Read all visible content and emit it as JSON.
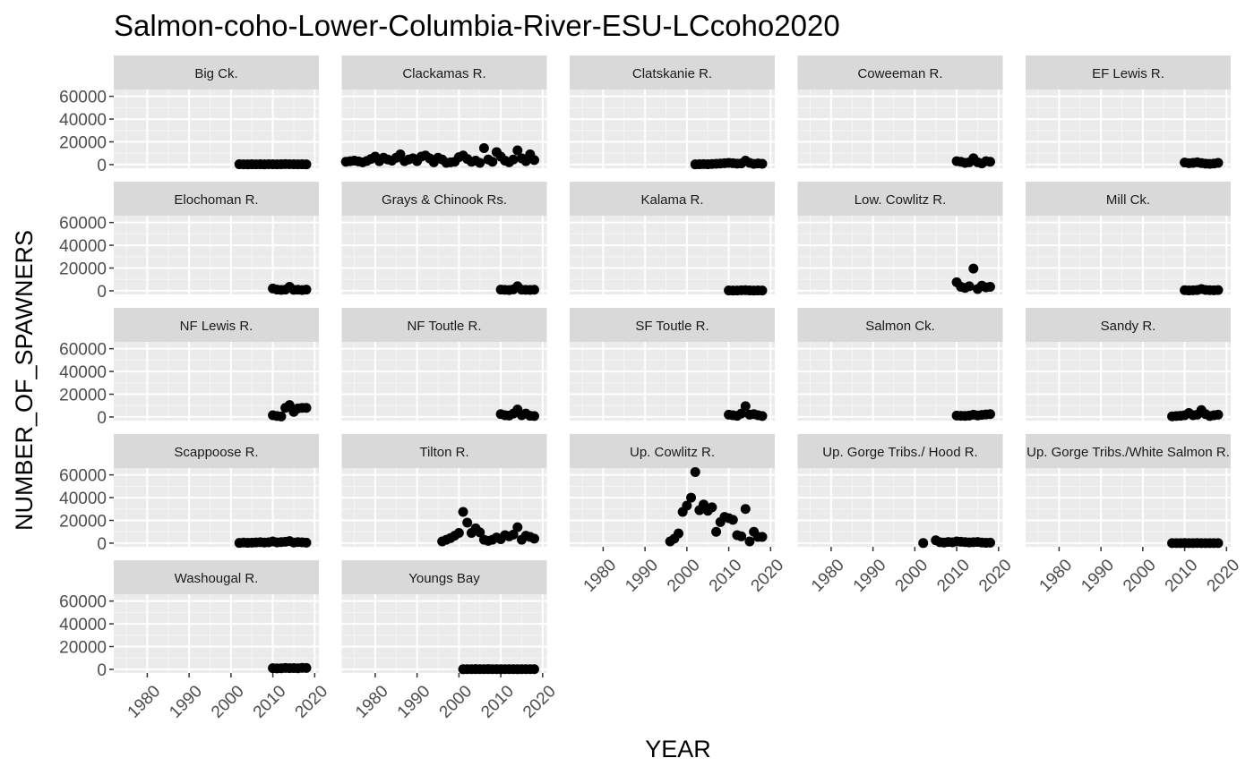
{
  "chart_data": {
    "type": "scatter",
    "title": "Salmon-coho-Lower-Columbia-River-ESU-LCcoho2020",
    "xlabel": "YEAR",
    "ylabel": "NUMBER_OF_SPAWNERS",
    "xlim": [
      1972,
      2021
    ],
    "ylim": [
      -3200,
      66000
    ],
    "x_ticks": [
      1980,
      1990,
      2000,
      2010,
      2020
    ],
    "y_ticks": [
      0,
      20000,
      40000,
      60000
    ],
    "x_tick_labels": [
      "1980",
      "1990",
      "2000",
      "2010",
      "2020"
    ],
    "y_tick_labels": [
      "0",
      "20000",
      "40000",
      "60000"
    ],
    "grid": true,
    "legend": "none",
    "point_color": "#000000",
    "panel_background": "#ebebeb",
    "strip_background": "#d9d9d9",
    "facets": [
      {
        "name": "Big Ck.",
        "x": [
          2002,
          2003,
          2004,
          2005,
          2006,
          2007,
          2008,
          2009,
          2010,
          2011,
          2012,
          2013,
          2014,
          2015,
          2016,
          2017,
          2018
        ],
        "y": [
          300,
          250,
          200,
          300,
          250,
          300,
          200,
          350,
          300,
          250,
          300,
          400,
          350,
          300,
          250,
          300,
          200
        ]
      },
      {
        "name": "Clackamas R.",
        "x": [
          1973,
          1974,
          1975,
          1976,
          1977,
          1978,
          1979,
          1980,
          1981,
          1982,
          1983,
          1984,
          1985,
          1986,
          1987,
          1988,
          1989,
          1990,
          1991,
          1992,
          1993,
          1994,
          1995,
          1996,
          1997,
          1998,
          1999,
          2000,
          2001,
          2002,
          2003,
          2004,
          2005,
          2006,
          2007,
          2008,
          2009,
          2010,
          2011,
          2012,
          2013,
          2014,
          2015,
          2016,
          2017,
          2018
        ],
        "y": [
          2500,
          3000,
          3500,
          2800,
          2000,
          3200,
          5000,
          7000,
          3000,
          6000,
          4500,
          3500,
          6000,
          9000,
          3000,
          4500,
          5500,
          3000,
          7000,
          8000,
          5500,
          2000,
          6000,
          4500,
          1500,
          2000,
          2500,
          6500,
          8000,
          5000,
          2500,
          3500,
          1500,
          14500,
          4500,
          2500,
          11000,
          7000,
          3500,
          2000,
          4500,
          12500,
          5500,
          3000,
          9000,
          4000
        ]
      },
      {
        "name": "Clatskanie R.",
        "x": [
          2002,
          2003,
          2004,
          2005,
          2006,
          2007,
          2008,
          2009,
          2010,
          2011,
          2012,
          2013,
          2014,
          2015,
          2016,
          2017,
          2018
        ],
        "y": [
          200,
          300,
          400,
          300,
          500,
          700,
          900,
          1200,
          1500,
          1200,
          800,
          1000,
          3500,
          1500,
          600,
          1000,
          700
        ]
      },
      {
        "name": "Coweeman R.",
        "x": [
          2010,
          2011,
          2012,
          2013,
          2014,
          2015,
          2016,
          2017,
          2018
        ],
        "y": [
          3000,
          2500,
          1500,
          2000,
          5500,
          2000,
          1000,
          3000,
          2500
        ]
      },
      {
        "name": "EF Lewis R.",
        "x": [
          2010,
          2011,
          2012,
          2013,
          2014,
          2015,
          2016,
          2017,
          2018
        ],
        "y": [
          1800,
          1200,
          1500,
          2000,
          1300,
          800,
          600,
          900,
          1500
        ]
      },
      {
        "name": "Elochoman R.",
        "x": [
          2010,
          2011,
          2012,
          2013,
          2014,
          2015,
          2016,
          2017,
          2018
        ],
        "y": [
          2000,
          1000,
          700,
          1000,
          3500,
          800,
          900,
          600,
          1000
        ]
      },
      {
        "name": "Grays & Chinook Rs.",
        "x": [
          2010,
          2011,
          2012,
          2013,
          2014,
          2015,
          2016,
          2017,
          2018
        ],
        "y": [
          1000,
          800,
          600,
          1200,
          4000,
          900,
          800,
          700,
          900
        ]
      },
      {
        "name": "Kalama R.",
        "x": [
          2010,
          2011,
          2012,
          2013,
          2014,
          2015,
          2016,
          2017,
          2018
        ],
        "y": [
          300,
          200,
          250,
          400,
          500,
          300,
          200,
          300,
          250
        ]
      },
      {
        "name": "Low. Cowlitz R.",
        "x": [
          2010,
          2011,
          2012,
          2013,
          2014,
          2015,
          2016,
          2017,
          2018
        ],
        "y": [
          7500,
          3500,
          2500,
          4000,
          19500,
          1500,
          4500,
          3000,
          3500
        ]
      },
      {
        "name": "Mill Ck.",
        "x": [
          2010,
          2011,
          2012,
          2013,
          2014,
          2015,
          2016,
          2017,
          2018
        ],
        "y": [
          500,
          300,
          400,
          600,
          1500,
          700,
          500,
          400,
          600
        ]
      },
      {
        "name": "NF Lewis R.",
        "x": [
          2010,
          2011,
          2012,
          2013,
          2014,
          2015,
          2016,
          2017,
          2018
        ],
        "y": [
          1500,
          800,
          400,
          8000,
          10500,
          4500,
          7500,
          8000,
          8000
        ]
      },
      {
        "name": "NF Toutle R.",
        "x": [
          2010,
          2011,
          2012,
          2013,
          2014,
          2015,
          2016,
          2017,
          2018
        ],
        "y": [
          2500,
          1500,
          1200,
          3000,
          6500,
          1500,
          3000,
          1000,
          800
        ]
      },
      {
        "name": "SF Toutle R.",
        "x": [
          2010,
          2011,
          2012,
          2013,
          2014,
          2015,
          2016,
          2017,
          2018
        ],
        "y": [
          2000,
          1500,
          1000,
          3000,
          9500,
          2000,
          2500,
          1500,
          800
        ]
      },
      {
        "name": "Salmon Ck.",
        "x": [
          2010,
          2011,
          2012,
          2013,
          2014,
          2015,
          2016,
          2017,
          2018
        ],
        "y": [
          1200,
          1000,
          900,
          1200,
          2000,
          1300,
          1800,
          2200,
          2500
        ]
      },
      {
        "name": "Sandy R.",
        "x": [
          2007,
          2008,
          2009,
          2010,
          2011,
          2012,
          2013,
          2014,
          2015,
          2016,
          2017,
          2018
        ],
        "y": [
          500,
          800,
          1000,
          1500,
          3500,
          1500,
          2000,
          6000,
          2500,
          800,
          1500,
          2000
        ]
      },
      {
        "name": "Scappoose R.",
        "x": [
          2002,
          2003,
          2004,
          2005,
          2006,
          2007,
          2008,
          2009,
          2010,
          2011,
          2012,
          2013,
          2014,
          2015,
          2016,
          2017,
          2018
        ],
        "y": [
          200,
          500,
          300,
          400,
          600,
          800,
          500,
          700,
          1500,
          600,
          900,
          1200,
          1800,
          500,
          900,
          700,
          400
        ]
      },
      {
        "name": "Tilton R.",
        "x": [
          1996,
          1997,
          1998,
          1999,
          2000,
          2001,
          2002,
          2003,
          2004,
          2005,
          2006,
          2007,
          2008,
          2009,
          2010,
          2011,
          2012,
          2013,
          2014,
          2015,
          2016,
          2017,
          2018
        ],
        "y": [
          1500,
          3000,
          4500,
          6500,
          9000,
          27500,
          18000,
          9000,
          13000,
          9500,
          3000,
          2000,
          3000,
          5000,
          3500,
          7000,
          6000,
          7500,
          14000,
          3000,
          6500,
          5500,
          4000
        ]
      },
      {
        "name": "Up. Cowlitz R.",
        "x": [
          1996,
          1997,
          1998,
          1999,
          2000,
          2001,
          2002,
          2003,
          2004,
          2005,
          2006,
          2007,
          2008,
          2009,
          2010,
          2011,
          2012,
          2013,
          2014,
          2015,
          2016,
          2017,
          2018
        ],
        "y": [
          1500,
          4000,
          8500,
          27500,
          33000,
          40000,
          62500,
          29000,
          34000,
          28500,
          31500,
          10000,
          18500,
          23000,
          22000,
          20500,
          7000,
          6000,
          30000,
          1500,
          10000,
          5500,
          5500
        ]
      },
      {
        "name": "Up. Gorge Tribs./ Hood R.",
        "x": [
          2002,
          2005,
          2006,
          2007,
          2008,
          2009,
          2010,
          2011,
          2012,
          2013,
          2014,
          2015,
          2016,
          2017,
          2018
        ],
        "y": [
          100,
          2500,
          800,
          500,
          1000,
          700,
          1500,
          1200,
          900,
          600,
          800,
          1000,
          500,
          300,
          400
        ]
      },
      {
        "name": "Up. Gorge Tribs./White Salmon R.",
        "x": [
          2007,
          2008,
          2009,
          2010,
          2011,
          2012,
          2013,
          2014,
          2015,
          2016,
          2017,
          2018
        ],
        "y": [
          50,
          80,
          60,
          100,
          70,
          90,
          120,
          80,
          60,
          70,
          90,
          50
        ]
      },
      {
        "name": "Washougal R.",
        "x": [
          2010,
          2011,
          2012,
          2013,
          2014,
          2015,
          2016,
          2017,
          2018
        ],
        "y": [
          1000,
          800,
          900,
          1200,
          1000,
          1100,
          900,
          1300,
          1200
        ]
      },
      {
        "name": "Youngs Bay",
        "x": [
          2001,
          2002,
          2003,
          2004,
          2005,
          2006,
          2007,
          2008,
          2009,
          2010,
          2011,
          2012,
          2013,
          2014,
          2015,
          2016,
          2017,
          2018
        ],
        "y": [
          100,
          150,
          120,
          200,
          180,
          150,
          200,
          170,
          150,
          130,
          160,
          140,
          120,
          100,
          150,
          130,
          110,
          120
        ]
      }
    ]
  }
}
